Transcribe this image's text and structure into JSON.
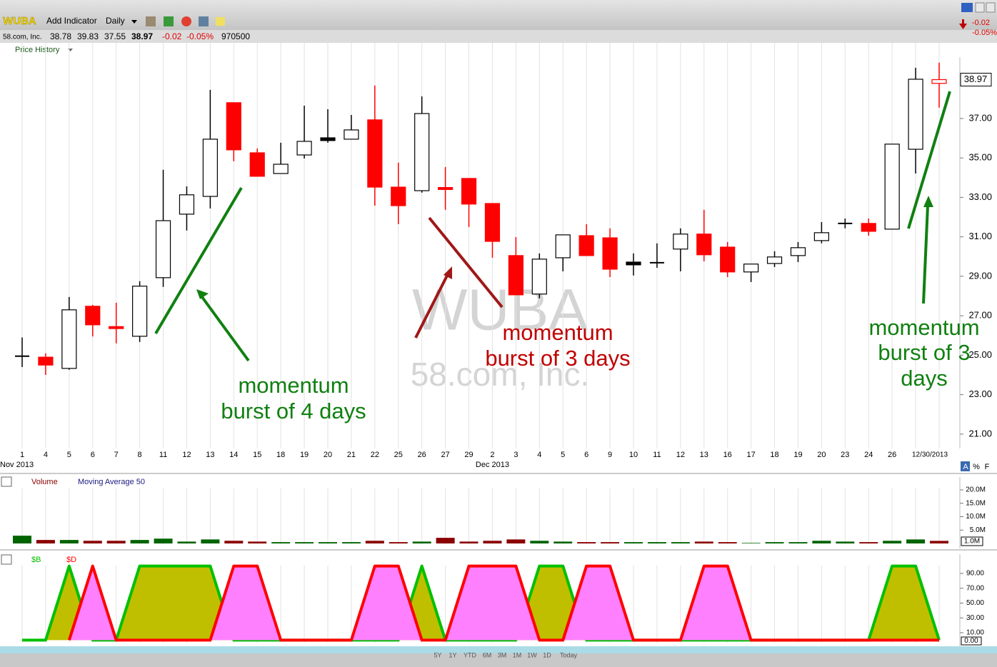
{
  "header": {
    "symbol": "WUBA",
    "add_indicator": "Add Indicator",
    "period": "Daily",
    "company": "58.com, Inc.",
    "open": "38.78",
    "high": "39.83",
    "low": "37.55",
    "close": "38.97",
    "change": "-0.02",
    "change_pct": "-0.05%",
    "volume": "970500",
    "panel_label": "Price History",
    "scale_buttons": [
      "A",
      "%",
      "F"
    ],
    "ranges": [
      "5Y",
      "1Y",
      "YTD",
      "6M",
      "3M",
      "1M",
      "1W",
      "1D",
      "Today"
    ]
  },
  "chart_data": [
    {
      "type": "candlestick",
      "categories": [
        "1",
        "4",
        "5",
        "6",
        "7",
        "8",
        "11",
        "12",
        "13",
        "14",
        "15",
        "18",
        "19",
        "20",
        "21",
        "22",
        "25",
        "26",
        "27",
        "29",
        "2",
        "3",
        "4",
        "5",
        "6",
        "9",
        "10",
        "11",
        "12",
        "13",
        "16",
        "17",
        "18",
        "19",
        "20",
        "23",
        "24",
        "26",
        null,
        "12/30/2013"
      ],
      "month_labels": [
        "Nov 2013",
        "Dec 2013"
      ],
      "open": [
        24.95,
        24.9,
        24.33,
        27.48,
        26.45,
        25.96,
        28.93,
        32.15,
        33.05,
        37.8,
        35.26,
        34.21,
        35.15,
        36.02,
        35.95,
        36.93,
        33.52,
        33.34,
        33.5,
        33.96,
        32.69,
        30.05,
        28.1,
        29.94,
        31.06,
        30.95,
        29.72,
        29.69,
        30.38,
        31.14,
        30.48,
        29.22,
        29.65,
        30.05,
        30.81,
        31.68,
        31.68,
        31.39,
        35.44,
        38.78
      ],
      "high": [
        25.9,
        25.1,
        27.95,
        27.55,
        27.66,
        28.75,
        34.4,
        33.56,
        38.45,
        37.8,
        35.48,
        35.77,
        37.65,
        37.47,
        37.18,
        38.67,
        34.76,
        38.12,
        34.54,
        33.96,
        32.69,
        30.99,
        30.16,
        31.1,
        31.64,
        31.43,
        30.16,
        30.67,
        31.43,
        32.37,
        30.74,
        29.62,
        30.27,
        30.74,
        31.75,
        31.93,
        31.93,
        35.7,
        39.57,
        39.83
      ],
      "low": [
        24.4,
        24.0,
        24.26,
        25.95,
        25.6,
        25.67,
        28.46,
        31.32,
        32.44,
        34.83,
        34.07,
        34.21,
        34.97,
        35.77,
        35.95,
        32.58,
        31.64,
        33.24,
        32.37,
        31.5,
        29.94,
        28.06,
        27.88,
        29.25,
        30.05,
        28.96,
        29.04,
        29.43,
        29.25,
        29.76,
        28.96,
        28.71,
        29.47,
        29.72,
        30.67,
        31.43,
        31.06,
        31.39,
        34.21,
        37.55
      ],
      "close": [
        24.95,
        24.5,
        27.3,
        26.54,
        26.35,
        28.5,
        31.82,
        33.13,
        35.95,
        35.41,
        34.07,
        34.68,
        35.84,
        35.88,
        36.42,
        33.52,
        32.58,
        37.25,
        33.4,
        32.66,
        30.77,
        28.06,
        29.87,
        31.1,
        30.05,
        29.36,
        29.58,
        29.69,
        31.14,
        30.09,
        29.22,
        29.62,
        29.98,
        30.45,
        31.21,
        31.68,
        31.28,
        35.7,
        38.99,
        38.97
      ],
      "up_color": "#000000",
      "down_color": "#ff0000",
      "ylim": [
        20.38,
        40.11
      ],
      "yticks": [
        {
          "value": 21,
          "label": "21.00"
        },
        {
          "value": 23,
          "label": "23.00"
        },
        {
          "value": 25,
          "label": "25.00"
        },
        {
          "value": 27,
          "label": "27.00"
        },
        {
          "value": 29,
          "label": "29.00"
        },
        {
          "value": 31,
          "label": "31.00"
        },
        {
          "value": 33,
          "label": "33.00"
        },
        {
          "value": 35,
          "label": "35.00"
        },
        {
          "value": 37,
          "label": "37.00"
        }
      ],
      "annotations": [
        {
          "lines": [
            "momentum",
            "burst of 4 days"
          ],
          "color": "#108010"
        },
        {
          "lines": [
            "momentum",
            "burst of 3 days"
          ],
          "color": "#c00000"
        },
        {
          "lines": [
            "momentum",
            "burst of 3",
            "days"
          ],
          "color": "#108010"
        }
      ]
    },
    {
      "type": "bar",
      "series": [
        {
          "name": "Volume",
          "values": [
            2.9,
            1.3,
            1.3,
            1.0,
            1.0,
            1.3,
            1.8,
            0.7,
            1.5,
            1.0,
            0.7,
            0.5,
            0.5,
            0.5,
            0.5,
            1.0,
            0.5,
            0.7,
            2.1,
            0.7,
            1.0,
            1.5,
            1.0,
            0.7,
            0.5,
            0.5,
            0.5,
            0.5,
            0.5,
            0.7,
            0.5,
            0.2,
            0.5,
            0.5,
            1.0,
            0.7,
            0.5,
            1.0,
            1.5,
            0.97
          ]
        }
      ],
      "indicator": "Moving Average 50",
      "current_label": "1.0M",
      "up_color": "#006400",
      "down_color": "#8b0000",
      "ylim": [
        0,
        21.6
      ],
      "yticks": [
        {
          "value": 5,
          "label": "5.0M"
        },
        {
          "value": 10,
          "label": "10.0M"
        },
        {
          "value": 15,
          "label": "15.0M"
        },
        {
          "value": 20,
          "label": "20.0M"
        }
      ]
    },
    {
      "type": "area",
      "series": [
        {
          "name": "$B",
          "color": "#00c000",
          "fill": "#bfbf00",
          "values": [
            0,
            0,
            100,
            0,
            0,
            100,
            100,
            100,
            100,
            0,
            0,
            0,
            0,
            0,
            0,
            0,
            0,
            100,
            0,
            0,
            0,
            0,
            100,
            100,
            0,
            0,
            0,
            0,
            0,
            0,
            0,
            0,
            0,
            0,
            0,
            0,
            0,
            100,
            100,
            0
          ]
        },
        {
          "name": "$D",
          "color": "#ff0000",
          "fill": "#ff80ff",
          "values": [
            null,
            null,
            0,
            100,
            0,
            0,
            0,
            0,
            0,
            100,
            100,
            0,
            0,
            0,
            0,
            100,
            100,
            0,
            0,
            100,
            100,
            100,
            0,
            0,
            100,
            100,
            0,
            0,
            0,
            100,
            100,
            0,
            0,
            0,
            0,
            0,
            0,
            0,
            0,
            0
          ]
        }
      ],
      "current_label": "0.00",
      "ylim": [
        -3.5,
        105.4
      ],
      "yticks": [
        {
          "value": 10,
          "label": "10.00"
        },
        {
          "value": 30,
          "label": "30.00"
        },
        {
          "value": 50,
          "label": "50.00"
        },
        {
          "value": 70,
          "label": "70.00"
        },
        {
          "value": 90,
          "label": "90.00"
        }
      ]
    }
  ]
}
